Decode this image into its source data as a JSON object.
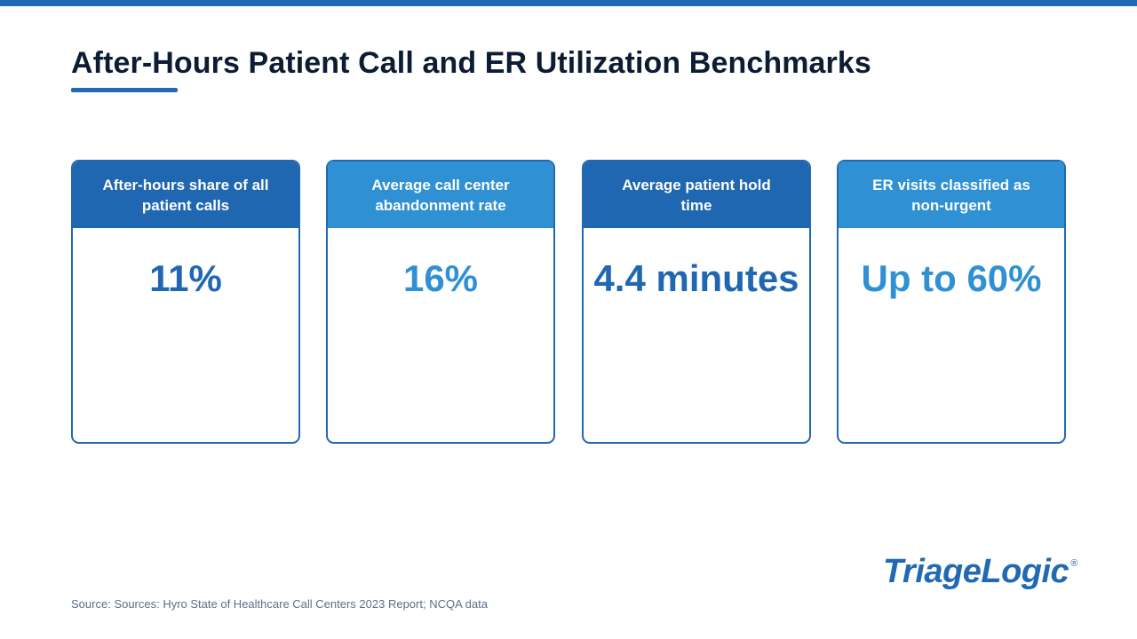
{
  "title": "After-Hours Patient Call and ER Utilization Benchmarks",
  "cards": [
    {
      "label": "After-hours share of all patient calls",
      "value": "11%",
      "header_color": "#1f67b1",
      "value_color": "#1f67b1"
    },
    {
      "label": "Average call center abandonment rate",
      "value": "16%",
      "header_color": "#2f90d3",
      "value_color": "#2f90d3"
    },
    {
      "label": "Average patient hold time",
      "value": "4.4 minutes",
      "header_color": "#1f67b1",
      "value_color": "#1f67b1"
    },
    {
      "label": "ER visits classified as non-urgent",
      "value": "Up to 60%",
      "header_color": "#2f90d3",
      "value_color": "#2f90d3"
    }
  ],
  "source": "Source: Sources: Hyro State of Healthcare Call Centers 2023 Report; NCQA data",
  "logo": {
    "text": "TriageLogic",
    "mark": "®"
  },
  "colors": {
    "accent": "#2169b3",
    "title": "#0c1c33"
  }
}
